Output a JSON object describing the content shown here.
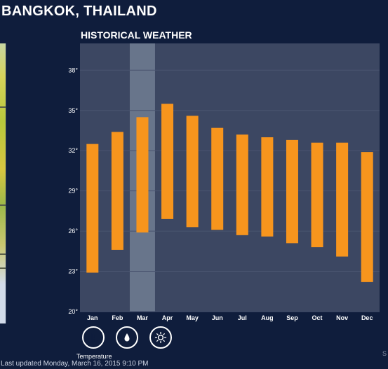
{
  "header": {
    "city_title": "BANGKOK, THAILAND"
  },
  "section": {
    "title": "HISTORICAL WEATHER"
  },
  "chart_data": {
    "type": "bar",
    "subtype": "range",
    "categories": [
      "Jan",
      "Feb",
      "Mar",
      "Apr",
      "May",
      "Jun",
      "Jul",
      "Aug",
      "Sep",
      "Oct",
      "Nov",
      "Dec"
    ],
    "series": [
      {
        "low": [
          22.9,
          24.6,
          25.9,
          26.9,
          26.3,
          26.1,
          25.7,
          25.6,
          25.1,
          24.8,
          24.1,
          22.2
        ],
        "high": [
          32.5,
          33.4,
          34.5,
          35.5,
          34.6,
          33.7,
          33.2,
          33.0,
          32.8,
          32.6,
          32.6,
          31.9
        ]
      }
    ],
    "y_ticks": [
      "20°",
      "23°",
      "26°",
      "29°",
      "32°",
      "35°",
      "38°"
    ],
    "y_tick_values": [
      20,
      23,
      26,
      29,
      32,
      35,
      38
    ],
    "ylim": [
      20,
      40
    ],
    "highlighted_category": "Mar",
    "grid": true,
    "bar_color": "#f7951d",
    "plot_background": "#3c4762",
    "highlight_color": "#68758b",
    "gridline_color": "#4a5570"
  },
  "metrics": {
    "buttons": [
      {
        "icon": "thermometer-icon",
        "active": true
      },
      {
        "icon": "raindrop-icon",
        "active": false
      },
      {
        "icon": "sun-icon",
        "active": false
      }
    ],
    "active_label": "Temperature"
  },
  "footer": {
    "last_updated": "Last updated Monday, March 16, 2015 9:10 PM",
    "edge_letter": "S"
  }
}
